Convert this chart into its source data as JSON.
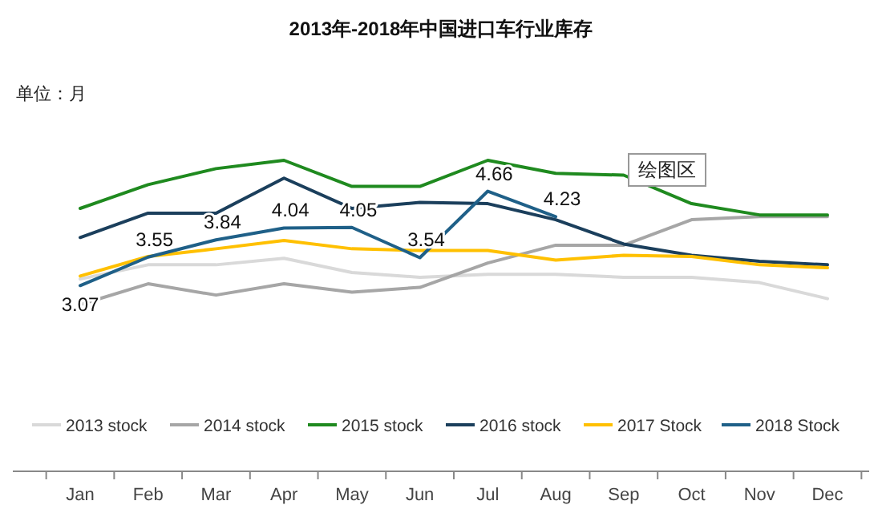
{
  "chart_data": {
    "type": "line",
    "title": "2013年-2018年中国进口车行业库存",
    "ylabel": "单位：月",
    "categories": [
      "Jan",
      "Feb",
      "Mar",
      "Apr",
      "May",
      "Jun",
      "Jul",
      "Aug",
      "Sep",
      "Oct",
      "Nov",
      "Dec"
    ],
    "tick_labels": "x",
    "legend": "bottom",
    "marker": "none",
    "line_style": "solid",
    "annotations": [
      "绘图区"
    ],
    "series": [
      {
        "name": "2013 stock",
        "color": "#d9d9d9",
        "values": [
          3.18,
          3.42,
          3.42,
          3.53,
          3.29,
          3.21,
          3.26,
          3.26,
          3.21,
          3.21,
          3.12,
          2.85
        ]
      },
      {
        "name": "2014 stock",
        "color": "#a6a6a6",
        "values": [
          2.75,
          3.1,
          2.91,
          3.1,
          2.96,
          3.04,
          3.45,
          3.75,
          3.75,
          4.18,
          4.23,
          4.23
        ]
      },
      {
        "name": "2015 stock",
        "color": "#1f8a1f",
        "values": [
          4.37,
          4.77,
          5.04,
          5.18,
          4.74,
          4.74,
          5.18,
          4.96,
          4.93,
          4.45,
          4.26,
          4.26
        ]
      },
      {
        "name": "2016 stock",
        "color": "#1b3f5c",
        "values": [
          3.88,
          4.29,
          4.29,
          4.88,
          4.37,
          4.47,
          4.45,
          4.18,
          3.77,
          3.58,
          3.48,
          3.42
        ]
      },
      {
        "name": "2017 Stock",
        "color": "#ffc000",
        "values": [
          3.23,
          3.56,
          3.69,
          3.83,
          3.69,
          3.66,
          3.66,
          3.5,
          3.58,
          3.56,
          3.42,
          3.37
        ]
      },
      {
        "name": "2018 Stock",
        "color": "#1f6088",
        "values": [
          3.07,
          3.55,
          3.84,
          4.04,
          4.05,
          3.54,
          4.66,
          4.23,
          null,
          null,
          null,
          null
        ],
        "value_labels": [
          "3.07",
          "3.55",
          "3.84",
          "4.04",
          "4.05",
          "3.54",
          "4.66",
          "4.23",
          null,
          null,
          null,
          null
        ]
      }
    ]
  }
}
